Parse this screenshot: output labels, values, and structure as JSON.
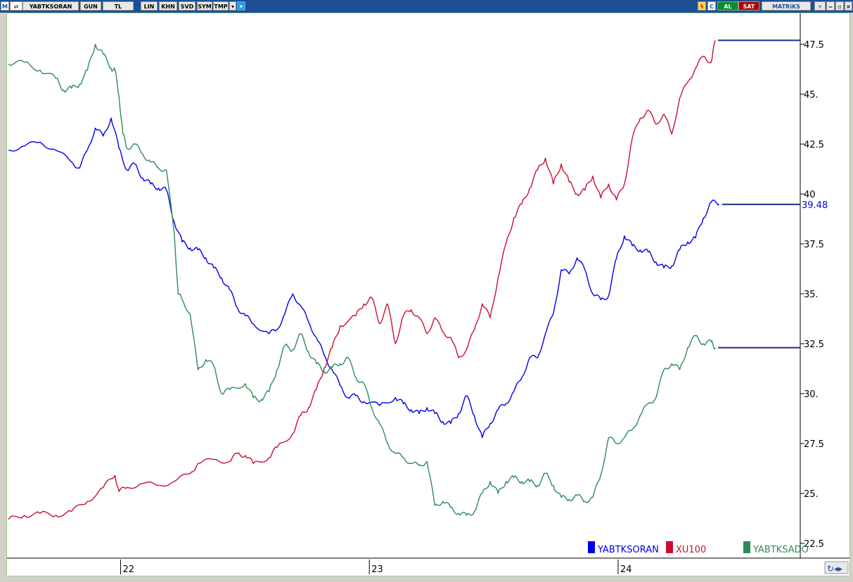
{
  "toolbar": {
    "logo": "M",
    "symbol": "YABTKSORAN",
    "period": "GUN",
    "currency": "TL",
    "buttons": [
      "LIN",
      "KHN",
      "SVD",
      "SYM",
      "TMP"
    ],
    "right": {
      "c": "C",
      "al": "AL",
      "sat": "SAT",
      "brand": "MATRiKS"
    }
  },
  "colors": {
    "blue": "#0000e6",
    "red": "#c8102e",
    "green": "#2e8b57",
    "toolbar": "#1c4f93"
  },
  "price_label": "39.48",
  "chart_data": {
    "type": "line",
    "ylim": [
      22.5,
      48.5
    ],
    "y_ticks": [
      "22.5",
      "25.",
      "27.5",
      "30.",
      "32.5",
      "35.",
      "37.5",
      "40",
      "42.5",
      "45.",
      "47.5"
    ],
    "x_ticks": [
      {
        "label": "22",
        "t": 0.142
      },
      {
        "label": "23",
        "t": 0.457
      },
      {
        "label": "24",
        "t": 0.772
      }
    ],
    "legend": [
      "YABTKSORAN",
      "XU100",
      "YABTKSADO"
    ],
    "series": [
      {
        "name": "YABTKSORAN",
        "color": "#0000e6",
        "last": 39.48,
        "points": [
          [
            0,
            42.2
          ],
          [
            0.02,
            42.4
          ],
          [
            0.04,
            42.6
          ],
          [
            0.06,
            42.2
          ],
          [
            0.08,
            41.6
          ],
          [
            0.09,
            41.3
          ],
          [
            0.1,
            42.2
          ],
          [
            0.11,
            43.3
          ],
          [
            0.12,
            42.9
          ],
          [
            0.13,
            43.8
          ],
          [
            0.14,
            42.3
          ],
          [
            0.15,
            41.2
          ],
          [
            0.16,
            41.5
          ],
          [
            0.17,
            40.8
          ],
          [
            0.18,
            40.5
          ],
          [
            0.19,
            40.3
          ],
          [
            0.2,
            40.2
          ],
          [
            0.21,
            38.6
          ],
          [
            0.22,
            37.6
          ],
          [
            0.23,
            37.3
          ],
          [
            0.24,
            37.2
          ],
          [
            0.25,
            36.8
          ],
          [
            0.26,
            36.3
          ],
          [
            0.27,
            35.8
          ],
          [
            0.28,
            35.2
          ],
          [
            0.29,
            34.3
          ],
          [
            0.3,
            33.9
          ],
          [
            0.31,
            33.5
          ],
          [
            0.33,
            33.0
          ],
          [
            0.34,
            33.2
          ],
          [
            0.35,
            34.0
          ],
          [
            0.36,
            35.0
          ],
          [
            0.37,
            34.4
          ],
          [
            0.38,
            33.6
          ],
          [
            0.39,
            32.8
          ],
          [
            0.4,
            31.9
          ],
          [
            0.41,
            31.2
          ],
          [
            0.42,
            30.4
          ],
          [
            0.43,
            29.8
          ],
          [
            0.44,
            29.9
          ],
          [
            0.45,
            29.6
          ],
          [
            0.47,
            29.4
          ],
          [
            0.49,
            29.8
          ],
          [
            0.5,
            29.5
          ],
          [
            0.51,
            29.2
          ],
          [
            0.52,
            29.0
          ],
          [
            0.53,
            29.3
          ],
          [
            0.54,
            29.0
          ],
          [
            0.55,
            28.6
          ],
          [
            0.56,
            28.5
          ],
          [
            0.57,
            29.0
          ],
          [
            0.58,
            29.9
          ],
          [
            0.59,
            28.9
          ],
          [
            0.6,
            27.8
          ],
          [
            0.61,
            28.5
          ],
          [
            0.62,
            29.2
          ],
          [
            0.63,
            29.5
          ],
          [
            0.64,
            30.1
          ],
          [
            0.65,
            30.8
          ],
          [
            0.66,
            31.8
          ],
          [
            0.67,
            31.8
          ],
          [
            0.68,
            33.0
          ],
          [
            0.69,
            34.0
          ],
          [
            0.7,
            36.2
          ],
          [
            0.71,
            36.0
          ],
          [
            0.72,
            36.8
          ],
          [
            0.73,
            36.2
          ],
          [
            0.74,
            35.0
          ],
          [
            0.75,
            34.7
          ],
          [
            0.76,
            34.9
          ],
          [
            0.77,
            36.8
          ],
          [
            0.78,
            37.9
          ],
          [
            0.79,
            37.4
          ],
          [
            0.8,
            37.2
          ],
          [
            0.81,
            37.1
          ],
          [
            0.82,
            36.6
          ],
          [
            0.83,
            36.3
          ],
          [
            0.84,
            36.4
          ],
          [
            0.85,
            37.2
          ],
          [
            0.86,
            37.6
          ],
          [
            0.87,
            37.8
          ],
          [
            0.88,
            38.8
          ],
          [
            0.89,
            39.6
          ],
          [
            0.9,
            39.5
          ]
        ]
      },
      {
        "name": "XU100",
        "color": "#c8102e",
        "last": 47.7,
        "points": [
          [
            0,
            23.7
          ],
          [
            0.02,
            23.9
          ],
          [
            0.04,
            24.0
          ],
          [
            0.06,
            23.9
          ],
          [
            0.08,
            24.1
          ],
          [
            0.1,
            24.6
          ],
          [
            0.12,
            25.3
          ],
          [
            0.135,
            25.9
          ],
          [
            0.14,
            25.1
          ],
          [
            0.15,
            25.3
          ],
          [
            0.17,
            25.5
          ],
          [
            0.19,
            25.4
          ],
          [
            0.21,
            25.6
          ],
          [
            0.23,
            26.0
          ],
          [
            0.24,
            26.5
          ],
          [
            0.26,
            26.7
          ],
          [
            0.28,
            26.6
          ],
          [
            0.29,
            27.0
          ],
          [
            0.3,
            26.9
          ],
          [
            0.31,
            26.5
          ],
          [
            0.33,
            26.8
          ],
          [
            0.34,
            27.3
          ],
          [
            0.36,
            28.0
          ],
          [
            0.37,
            28.9
          ],
          [
            0.38,
            29.3
          ],
          [
            0.39,
            30.2
          ],
          [
            0.4,
            31.3
          ],
          [
            0.41,
            32.3
          ],
          [
            0.42,
            33.4
          ],
          [
            0.44,
            33.9
          ],
          [
            0.45,
            34.5
          ],
          [
            0.46,
            34.8
          ],
          [
            0.47,
            33.5
          ],
          [
            0.48,
            34.5
          ],
          [
            0.49,
            32.5
          ],
          [
            0.5,
            33.9
          ],
          [
            0.51,
            34.2
          ],
          [
            0.52,
            33.8
          ],
          [
            0.53,
            33.0
          ],
          [
            0.54,
            33.8
          ],
          [
            0.55,
            33.1
          ],
          [
            0.56,
            32.8
          ],
          [
            0.57,
            31.8
          ],
          [
            0.58,
            32.2
          ],
          [
            0.59,
            33.2
          ],
          [
            0.6,
            34.5
          ],
          [
            0.61,
            33.8
          ],
          [
            0.62,
            35.8
          ],
          [
            0.63,
            37.5
          ],
          [
            0.64,
            38.8
          ],
          [
            0.65,
            39.5
          ],
          [
            0.66,
            40.3
          ],
          [
            0.67,
            41.2
          ],
          [
            0.68,
            41.8
          ],
          [
            0.69,
            40.5
          ],
          [
            0.7,
            41.5
          ],
          [
            0.71,
            40.6
          ],
          [
            0.72,
            40.0
          ],
          [
            0.73,
            40.2
          ],
          [
            0.74,
            40.9
          ],
          [
            0.75,
            39.8
          ],
          [
            0.76,
            40.5
          ],
          [
            0.77,
            39.7
          ],
          [
            0.78,
            40.5
          ],
          [
            0.79,
            42.8
          ],
          [
            0.8,
            43.8
          ],
          [
            0.81,
            44.2
          ],
          [
            0.82,
            43.5
          ],
          [
            0.83,
            44.0
          ],
          [
            0.84,
            43.0
          ],
          [
            0.85,
            44.8
          ],
          [
            0.86,
            45.6
          ],
          [
            0.87,
            46.3
          ],
          [
            0.88,
            46.9
          ],
          [
            0.89,
            46.6
          ],
          [
            0.895,
            47.7
          ]
        ]
      },
      {
        "name": "YABTKSADO",
        "color": "#2e8b57",
        "last": 32.3,
        "points": [
          [
            0,
            46.5
          ],
          [
            0.02,
            46.6
          ],
          [
            0.04,
            46.2
          ],
          [
            0.06,
            45.8
          ],
          [
            0.07,
            45.2
          ],
          [
            0.08,
            45.3
          ],
          [
            0.09,
            45.5
          ],
          [
            0.1,
            46.2
          ],
          [
            0.11,
            47.5
          ],
          [
            0.12,
            47.0
          ],
          [
            0.13,
            46.3
          ],
          [
            0.135,
            46.2
          ],
          [
            0.14,
            44.9
          ],
          [
            0.145,
            43.0
          ],
          [
            0.15,
            42.3
          ],
          [
            0.16,
            42.5
          ],
          [
            0.17,
            42.0
          ],
          [
            0.18,
            41.6
          ],
          [
            0.19,
            41.3
          ],
          [
            0.2,
            41.2
          ],
          [
            0.21,
            38.0
          ],
          [
            0.215,
            35.0
          ],
          [
            0.22,
            34.7
          ],
          [
            0.23,
            34.0
          ],
          [
            0.24,
            31.2
          ],
          [
            0.25,
            31.7
          ],
          [
            0.26,
            31.4
          ],
          [
            0.27,
            30.0
          ],
          [
            0.28,
            30.2
          ],
          [
            0.3,
            30.5
          ],
          [
            0.31,
            29.8
          ],
          [
            0.32,
            29.7
          ],
          [
            0.33,
            30.1
          ],
          [
            0.34,
            31.2
          ],
          [
            0.35,
            32.4
          ],
          [
            0.36,
            32.2
          ],
          [
            0.37,
            33.0
          ],
          [
            0.38,
            32.1
          ],
          [
            0.39,
            31.5
          ],
          [
            0.4,
            31.1
          ],
          [
            0.41,
            31.3
          ],
          [
            0.42,
            31.5
          ],
          [
            0.43,
            31.8
          ],
          [
            0.44,
            30.8
          ],
          [
            0.45,
            30.5
          ],
          [
            0.46,
            29.3
          ],
          [
            0.47,
            28.5
          ],
          [
            0.48,
            27.5
          ],
          [
            0.49,
            27.0
          ],
          [
            0.5,
            26.8
          ],
          [
            0.51,
            26.5
          ],
          [
            0.52,
            26.4
          ],
          [
            0.53,
            26.6
          ],
          [
            0.54,
            24.4
          ],
          [
            0.55,
            24.6
          ],
          [
            0.56,
            24.3
          ],
          [
            0.57,
            24.0
          ],
          [
            0.58,
            23.9
          ],
          [
            0.59,
            24.1
          ],
          [
            0.6,
            25.0
          ],
          [
            0.61,
            25.6
          ],
          [
            0.62,
            25.0
          ],
          [
            0.63,
            25.6
          ],
          [
            0.64,
            25.8
          ],
          [
            0.65,
            25.6
          ],
          [
            0.66,
            25.6
          ],
          [
            0.67,
            25.4
          ],
          [
            0.68,
            26.0
          ],
          [
            0.69,
            25.4
          ],
          [
            0.7,
            24.8
          ],
          [
            0.71,
            24.7
          ],
          [
            0.72,
            24.9
          ],
          [
            0.73,
            24.6
          ],
          [
            0.74,
            24.8
          ],
          [
            0.75,
            25.9
          ],
          [
            0.76,
            27.8
          ],
          [
            0.77,
            27.5
          ],
          [
            0.78,
            27.8
          ],
          [
            0.79,
            28.2
          ],
          [
            0.8,
            28.9
          ],
          [
            0.81,
            29.5
          ],
          [
            0.82,
            29.8
          ],
          [
            0.83,
            31.2
          ],
          [
            0.84,
            31.5
          ],
          [
            0.85,
            31.2
          ],
          [
            0.86,
            32.3
          ],
          [
            0.87,
            32.9
          ],
          [
            0.88,
            32.5
          ],
          [
            0.89,
            32.6
          ],
          [
            0.895,
            32.3
          ]
        ]
      }
    ]
  }
}
